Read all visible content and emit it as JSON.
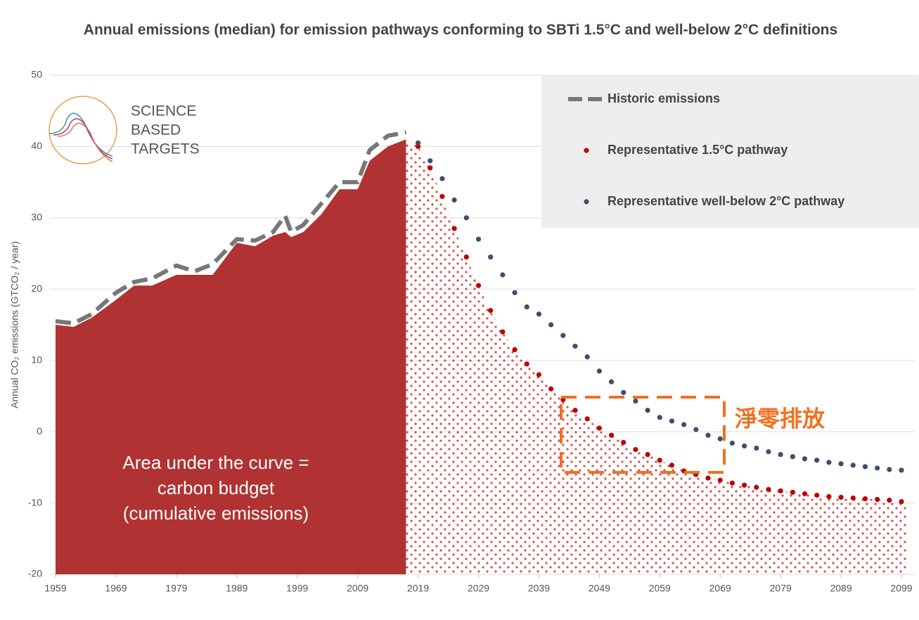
{
  "chart_data": {
    "type": "line",
    "title": "Annual emissions (median) for emission pathways conforming to SBTi 1.5°C and well-below 2°C definitions",
    "y_label": "Annual CO₂ emissions (GTCO₂ / year)",
    "logo": [
      "SCIENCE",
      "BASED",
      "TARGETS"
    ],
    "annotation": [
      "Area under the curve =",
      "carbon budget",
      "(cumulative emissions)"
    ],
    "net_zero_label": "淨零排放",
    "xlim": [
      1958,
      2100
    ],
    "xticks": [
      1959,
      1969,
      1979,
      1989,
      1999,
      2009,
      2019,
      2029,
      2039,
      2049,
      2059,
      2069,
      2079,
      2089,
      2099
    ],
    "ylim": [
      -20,
      50
    ],
    "yticks": [
      -20,
      -10,
      0,
      10,
      20,
      30,
      40,
      50
    ],
    "grid": true,
    "legend": "top-right",
    "carbon_budget": {
      "color": "#b03232",
      "x": [
        1959,
        1962,
        1965,
        1969,
        1972,
        1975,
        1979,
        1982,
        1985,
        1989,
        1992,
        1995,
        1997,
        1998,
        2000,
        2003,
        2006,
        2009,
        2011,
        2014,
        2017
      ],
      "values": [
        15,
        14.7,
        16,
        18.5,
        20.5,
        20.5,
        22,
        22,
        22,
        26.5,
        26,
        27.5,
        28,
        27.3,
        28,
        30.5,
        34,
        34,
        38,
        40,
        41
      ]
    },
    "series": [
      {
        "name": "Historic emissions",
        "color": "#777777",
        "style": "dashed",
        "x": [
          1959,
          1962,
          1965,
          1969,
          1972,
          1975,
          1979,
          1982,
          1985,
          1989,
          1992,
          1995,
          1997,
          1998,
          2000,
          2003,
          2006,
          2009,
          2011,
          2014,
          2017
        ],
        "values": [
          15.5,
          15.2,
          16.5,
          19.5,
          21,
          21.5,
          23.3,
          22.5,
          23.5,
          27,
          26.8,
          28,
          30.3,
          28,
          29,
          32,
          35,
          35,
          39.5,
          41.5,
          42
        ]
      },
      {
        "name": "Representative 1.5°C pathway",
        "color": "#c00000",
        "style": "dotted",
        "x": [
          2019,
          2021,
          2023,
          2025,
          2027,
          2029,
          2031,
          2033,
          2035,
          2037,
          2039,
          2041,
          2043,
          2045,
          2047,
          2049,
          2051,
          2053,
          2055,
          2057,
          2059,
          2061,
          2063,
          2065,
          2067,
          2069,
          2071,
          2073,
          2075,
          2077,
          2079,
          2081,
          2083,
          2085,
          2087,
          2089,
          2091,
          2093,
          2095,
          2097,
          2099
        ],
        "values": [
          40,
          37,
          33,
          28.5,
          24.5,
          20.5,
          17,
          14,
          11.5,
          9.5,
          8,
          6,
          4.5,
          3,
          1.8,
          0.5,
          -0.5,
          -1.5,
          -2.5,
          -3.2,
          -4,
          -4.7,
          -5.5,
          -6,
          -6.5,
          -6.8,
          -7.2,
          -7.5,
          -7.8,
          -8.1,
          -8.3,
          -8.5,
          -8.7,
          -8.9,
          -9.1,
          -9.2,
          -9.3,
          -9.4,
          -9.5,
          -9.6,
          -9.8
        ]
      },
      {
        "name": "Representative well-below 2°C pathway",
        "color": "#3d4f6e",
        "style": "dotted",
        "x": [
          2019,
          2021,
          2023,
          2025,
          2027,
          2029,
          2031,
          2033,
          2035,
          2037,
          2039,
          2041,
          2043,
          2045,
          2047,
          2049,
          2051,
          2053,
          2055,
          2057,
          2059,
          2061,
          2063,
          2065,
          2067,
          2069,
          2071,
          2073,
          2075,
          2077,
          2079,
          2081,
          2083,
          2085,
          2087,
          2089,
          2091,
          2093,
          2095,
          2097,
          2099
        ],
        "values": [
          40.5,
          38,
          35.5,
          32.5,
          30,
          27,
          24.5,
          22,
          19.5,
          17.5,
          16.5,
          15,
          13.5,
          12,
          10.5,
          8.5,
          7,
          5.5,
          4.3,
          3,
          2,
          1.5,
          1,
          0.3,
          -0.5,
          -1,
          -1.6,
          -2,
          -2.3,
          -2.8,
          -3.2,
          -3.5,
          -3.8,
          -4,
          -4.3,
          -4.5,
          -4.7,
          -4.9,
          -5.1,
          -5.3,
          -5.4
        ]
      }
    ]
  }
}
